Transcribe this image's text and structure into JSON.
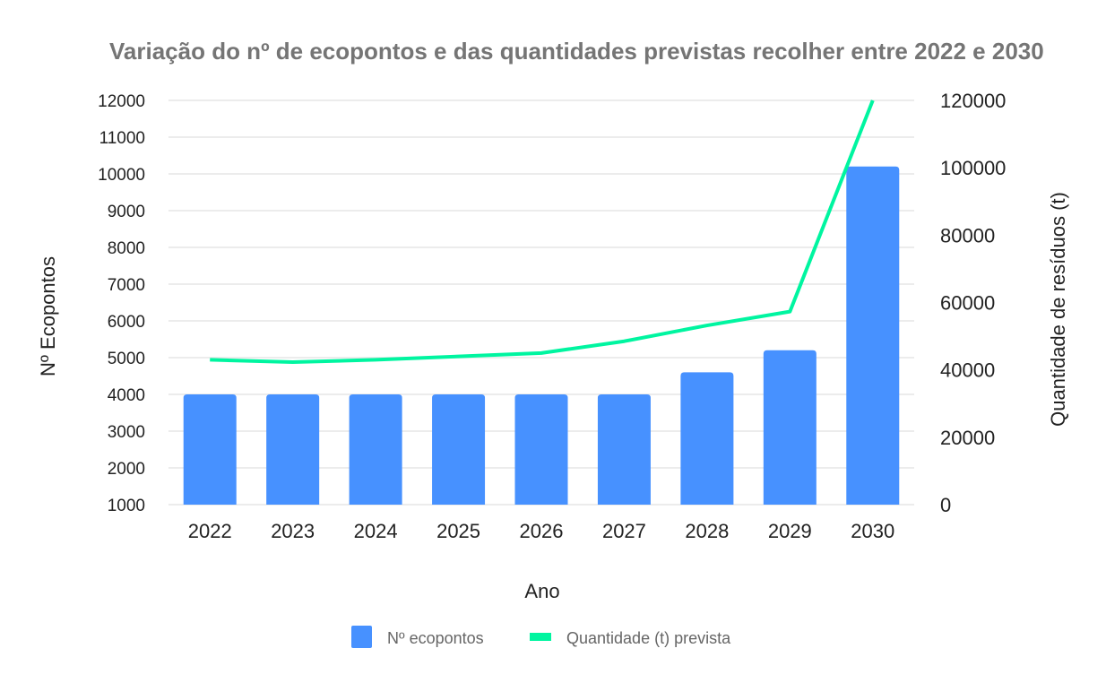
{
  "chart_data": {
    "type": "bar",
    "title": "Variação do nº de ecopontos e das quantidades previstas recolher entre 2022 e 2030",
    "xlabel": "Ano",
    "ylabel": "Nº Ecopontos",
    "y2label": "Quantidade de resíduos (t)",
    "categories": [
      "2022",
      "2023",
      "2024",
      "2025",
      "2026",
      "2027",
      "2028",
      "2029",
      "2030"
    ],
    "series": [
      {
        "name": "Nº ecopontos",
        "type": "bar",
        "axis": "left",
        "color": "#4791ff",
        "values": [
          4000,
          4000,
          4000,
          4000,
          4000,
          4000,
          4600,
          5200,
          10200
        ]
      },
      {
        "name": "Quantidade (t) prevista",
        "type": "line",
        "axis": "right",
        "color": "#00f5a0",
        "values": [
          43000,
          42300,
          43000,
          44000,
          45000,
          48500,
          53200,
          57300,
          120000
        ]
      }
    ],
    "ylim": [
      1000,
      12000
    ],
    "yticks": [
      "1000",
      "2000",
      "3000",
      "4000",
      "5000",
      "6000",
      "7000",
      "8000",
      "9000",
      "10000",
      "11000",
      "12000"
    ],
    "y2lim": [
      0,
      120000
    ],
    "y2ticks": [
      "0",
      "20000",
      "40000",
      "60000",
      "80000",
      "100000",
      "120000"
    ],
    "grid": true,
    "legend": "bottom"
  }
}
